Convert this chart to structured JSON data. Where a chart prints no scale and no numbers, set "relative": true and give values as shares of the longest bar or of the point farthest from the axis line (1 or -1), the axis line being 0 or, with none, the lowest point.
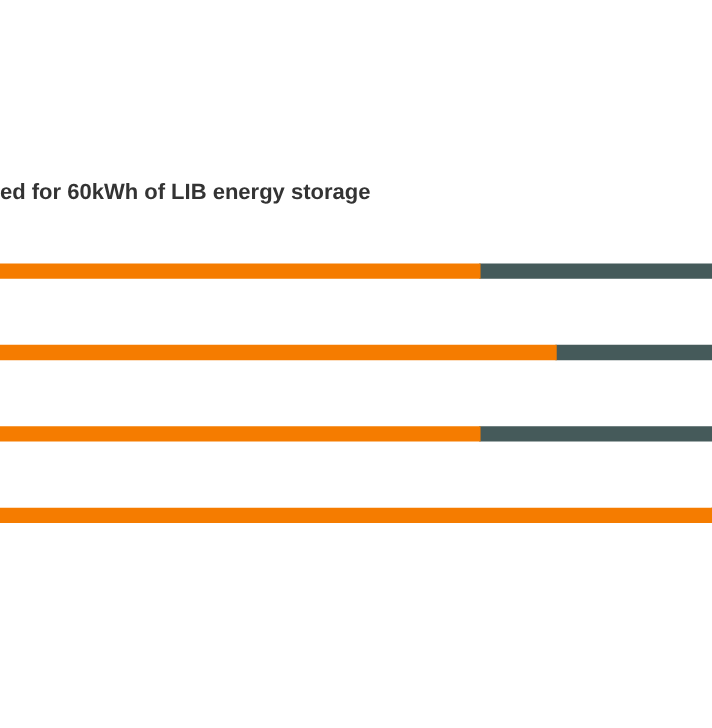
{
  "chart_data": {
    "type": "bar",
    "title": "ed for 60kWh of LIB energy storage",
    "orientation": "horizontal",
    "stacked": true,
    "relative": true,
    "categories": [
      null,
      null,
      null,
      null
    ],
    "series": [
      {
        "color": "#f57c00",
        "values": [
          0.674,
          0.781,
          0.674,
          1
        ]
      },
      {
        "color": "#455a5a",
        "values": [
          0.326,
          0.219,
          0.326,
          0
        ]
      }
    ]
  }
}
